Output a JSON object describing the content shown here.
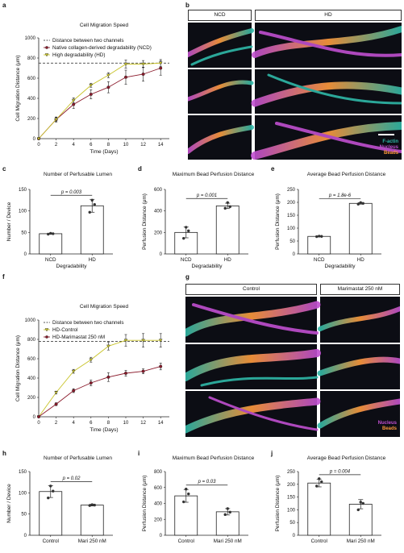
{
  "panel_letters": {
    "a": "a",
    "b": "b",
    "c": "c",
    "d": "d",
    "e": "e",
    "f": "f",
    "g": "g",
    "h": "h",
    "i": "i",
    "j": "j"
  },
  "colors": {
    "ncd": "#8b1a2b",
    "hd": "#c9c42a",
    "control": "#c9c42a",
    "marimastat": "#8b1a2b",
    "threshold": "#222222",
    "bar_fill": "#ffffff",
    "bar_edge": "#222222",
    "dot": "#333333",
    "actin": "#2fb8a8",
    "nucleus": "#c04fd0",
    "beads": "#ff9a3c"
  },
  "micrographs_b": {
    "headers": [
      "NCD",
      "HD"
    ],
    "legend": [
      "F-actin",
      "Nucleus",
      "Beads"
    ]
  },
  "micrographs_g": {
    "headers": [
      "Control",
      "Marimastat 250 nM"
    ],
    "legend": [
      "Nucleus",
      "Beads"
    ]
  },
  "chart_data": [
    {
      "id": "a",
      "type": "line",
      "title": "Cell Migration Speed",
      "xlabel": "Time (Days)",
      "ylabel": "Cell Migration Distance (μm)",
      "x": [
        0,
        2,
        4,
        6,
        8,
        10,
        12,
        14
      ],
      "xticks": [
        "0",
        "2",
        "4",
        "6",
        "8",
        "10",
        "12",
        "14"
      ],
      "yticks": [
        "0",
        "200",
        "400",
        "600",
        "800",
        "1000"
      ],
      "xlim": [
        0,
        15
      ],
      "ylim": [
        0,
        1000
      ],
      "threshold": {
        "name": "Distance between two channels",
        "value": 750
      },
      "series": [
        {
          "name": "Native collagen-derived degradability (NCD)",
          "color": "#8b1a2b",
          "marker": "circle",
          "values": [
            0,
            190,
            340,
            440,
            510,
            610,
            640,
            700
          ],
          "err": [
            0,
            25,
            40,
            45,
            55,
            70,
            70,
            70
          ]
        },
        {
          "name": "High degradability (HD)",
          "color": "#c9c42a",
          "marker": "triangle",
          "values": [
            0,
            190,
            380,
            530,
            630,
            740,
            740,
            750
          ],
          "err": [
            0,
            20,
            25,
            20,
            25,
            40,
            35,
            35
          ]
        }
      ],
      "legend_position": "top-left"
    },
    {
      "id": "c",
      "type": "bar",
      "title": "Number of Perfusable Lumen",
      "categories": [
        "NCD",
        "HD"
      ],
      "values": [
        47,
        112
      ],
      "points": [
        [
          46,
          47,
          48
        ],
        [
          97,
          115,
          125
        ]
      ],
      "err": [
        1,
        15
      ],
      "xlabel": "Degradability",
      "ylabel": "Number / Device",
      "yticks": [
        "0",
        "50",
        "100",
        "150"
      ],
      "ylim": [
        0,
        150
      ],
      "annotation": "p = 0.003"
    },
    {
      "id": "d",
      "type": "bar",
      "title": "Maximum Bead Perfusion Distance",
      "categories": [
        "NCD",
        "HD"
      ],
      "values": [
        200,
        447
      ],
      "points": [
        [
          145,
          215,
          248
        ],
        [
          425,
          440,
          478
        ]
      ],
      "err": [
        50,
        25
      ],
      "xlabel": "Degradability",
      "ylabel": "Perfusion Distance (μm)",
      "yticks": [
        "0",
        "200",
        "400",
        "600"
      ],
      "ylim": [
        0,
        600
      ],
      "annotation": "p = 0.001"
    },
    {
      "id": "e",
      "type": "bar",
      "title": "Average Bead Perfusion Distance",
      "categories": [
        "NCD",
        "HD"
      ],
      "values": [
        68,
        196
      ],
      "points": [
        [
          67,
          68,
          69
        ],
        [
          193,
          196,
          199
        ]
      ],
      "err": [
        1,
        3
      ],
      "xlabel": "Degradability",
      "ylabel": "Perfusion Distance (μm)",
      "yticks": [
        "0",
        "50",
        "100",
        "150",
        "200",
        "250"
      ],
      "ylim": [
        0,
        250
      ],
      "annotation": "p = 1.8e-6"
    },
    {
      "id": "f",
      "type": "line",
      "title": "Cell Migration Speed",
      "xlabel": "Time (Days)",
      "ylabel": "Cell Migration Distance (μm)",
      "x": [
        0,
        2,
        4,
        6,
        8,
        10,
        12,
        14
      ],
      "xticks": [
        "0",
        "2",
        "4",
        "6",
        "8",
        "10",
        "12",
        "14"
      ],
      "yticks": [
        "0",
        "200",
        "400",
        "600",
        "800",
        "1000"
      ],
      "xlim": [
        0,
        15
      ],
      "ylim": [
        0,
        1000
      ],
      "threshold": {
        "name": "Distance between two channels",
        "value": 780
      },
      "series": [
        {
          "name": "HD-Control",
          "color": "#c9c42a",
          "marker": "triangle",
          "values": [
            0,
            250,
            470,
            590,
            730,
            790,
            790,
            790
          ],
          "err": [
            0,
            15,
            20,
            25,
            40,
            60,
            70,
            70
          ]
        },
        {
          "name": "HD-Marimastat 250 nM",
          "color": "#8b1a2b",
          "marker": "circle",
          "values": [
            0,
            130,
            270,
            350,
            410,
            450,
            470,
            520
          ],
          "err": [
            0,
            15,
            20,
            30,
            45,
            30,
            25,
            35
          ]
        }
      ],
      "legend_position": "top-left"
    },
    {
      "id": "h",
      "type": "bar",
      "title": "Number of Perfusable Lumen",
      "categories": [
        "Control",
        "Mari 250 nM"
      ],
      "values": [
        103,
        71
      ],
      "points": [
        [
          88,
          104,
          116
        ],
        [
          70,
          71,
          72
        ]
      ],
      "err": [
        14,
        2
      ],
      "xlabel": "",
      "ylabel": "Number / Device",
      "yticks": [
        "0",
        "50",
        "100",
        "150"
      ],
      "ylim": [
        0,
        150
      ],
      "annotation": "p = 0.02"
    },
    {
      "id": "i",
      "type": "bar",
      "title": "Maximum Bead Perfusion Distance",
      "categories": [
        "Control",
        "Mari 250 nM"
      ],
      "values": [
        495,
        295
      ],
      "points": [
        [
          420,
          520,
          580
        ],
        [
          260,
          290,
          335
        ]
      ],
      "err": [
        80,
        40
      ],
      "xlabel": "",
      "ylabel": "Perfusion Distance (μm)",
      "yticks": [
        "0",
        "200",
        "400",
        "600",
        "800"
      ],
      "ylim": [
        0,
        800
      ],
      "annotation": "p = 0.03"
    },
    {
      "id": "j",
      "type": "bar",
      "title": "Average Bead Perfusion Distance",
      "categories": [
        "Control",
        "Mari 250 nM"
      ],
      "values": [
        205,
        122
      ],
      "points": [
        [
          193,
          210,
          222
        ],
        [
          100,
          125,
          130
        ]
      ],
      "err": [
        15,
        18
      ],
      "xlabel": "",
      "ylabel": "Perfusion Distance (μm)",
      "yticks": [
        "0",
        "50",
        "100",
        "150",
        "200",
        "250"
      ],
      "ylim": [
        0,
        250
      ],
      "annotation": "p = 0.004"
    }
  ]
}
